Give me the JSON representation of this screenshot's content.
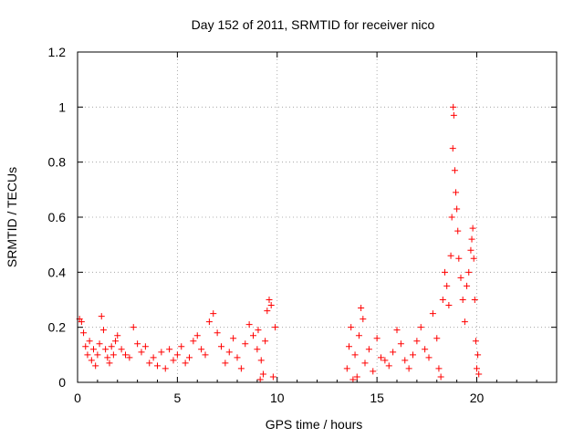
{
  "chart_data": {
    "type": "scatter",
    "title": "Day 152 of 2011, SRMTID for receiver nico",
    "xlabel": "GPS time / hours",
    "ylabel": "SRMTID / TECUs",
    "xlim": [
      0,
      24
    ],
    "ylim": [
      0,
      1.2
    ],
    "xticks": [
      0,
      5,
      10,
      15,
      20
    ],
    "xtick_labels": [
      "0",
      "5",
      "10",
      "15",
      "20"
    ],
    "yticks": [
      0,
      0.2,
      0.4,
      0.6,
      0.8,
      1,
      1.2
    ],
    "ytick_labels": [
      "0",
      "0.2",
      "0.4",
      "0.6",
      "0.8",
      "1",
      "1.2"
    ],
    "grid": true,
    "marker": "+",
    "color": "#ff0000",
    "series": [
      {
        "name": "SRMTID",
        "points": [
          [
            0.1,
            0.23
          ],
          [
            0.2,
            0.22
          ],
          [
            0.3,
            0.18
          ],
          [
            0.4,
            0.13
          ],
          [
            0.5,
            0.1
          ],
          [
            0.6,
            0.15
          ],
          [
            0.7,
            0.08
          ],
          [
            0.8,
            0.12
          ],
          [
            0.9,
            0.06
          ],
          [
            1.0,
            0.1
          ],
          [
            1.1,
            0.14
          ],
          [
            1.2,
            0.24
          ],
          [
            1.3,
            0.19
          ],
          [
            1.4,
            0.12
          ],
          [
            1.5,
            0.09
          ],
          [
            1.6,
            0.07
          ],
          [
            1.7,
            0.13
          ],
          [
            1.8,
            0.1
          ],
          [
            1.9,
            0.15
          ],
          [
            2.0,
            0.17
          ],
          [
            2.2,
            0.12
          ],
          [
            2.4,
            0.1
          ],
          [
            2.6,
            0.09
          ],
          [
            2.8,
            0.2
          ],
          [
            3.0,
            0.14
          ],
          [
            3.2,
            0.11
          ],
          [
            3.4,
            0.13
          ],
          [
            3.6,
            0.07
          ],
          [
            3.8,
            0.09
          ],
          [
            4.0,
            0.06
          ],
          [
            4.2,
            0.11
          ],
          [
            4.4,
            0.05
          ],
          [
            4.6,
            0.12
          ],
          [
            4.8,
            0.08
          ],
          [
            5.0,
            0.1
          ],
          [
            5.2,
            0.13
          ],
          [
            5.4,
            0.07
          ],
          [
            5.6,
            0.09
          ],
          [
            5.8,
            0.15
          ],
          [
            6.0,
            0.17
          ],
          [
            6.2,
            0.12
          ],
          [
            6.4,
            0.1
          ],
          [
            6.6,
            0.22
          ],
          [
            6.8,
            0.25
          ],
          [
            7.0,
            0.18
          ],
          [
            7.2,
            0.13
          ],
          [
            7.4,
            0.07
          ],
          [
            7.6,
            0.11
          ],
          [
            7.8,
            0.16
          ],
          [
            8.0,
            0.09
          ],
          [
            8.2,
            0.05
          ],
          [
            8.4,
            0.14
          ],
          [
            8.6,
            0.21
          ],
          [
            8.8,
            0.17
          ],
          [
            9.0,
            0.12
          ],
          [
            9.2,
            0.08
          ],
          [
            9.3,
            0.03
          ],
          [
            9.4,
            0.15
          ],
          [
            9.5,
            0.26
          ],
          [
            9.6,
            0.3
          ],
          [
            9.7,
            0.28
          ],
          [
            9.8,
            0.02
          ],
          [
            9.9,
            0.2
          ],
          [
            9.05,
            0.19
          ],
          [
            9.15,
            0.01
          ],
          [
            13.5,
            0.05
          ],
          [
            13.6,
            0.13
          ],
          [
            13.7,
            0.2
          ],
          [
            13.8,
            0.01
          ],
          [
            13.9,
            0.1
          ],
          [
            14.0,
            0.02
          ],
          [
            14.1,
            0.17
          ],
          [
            14.2,
            0.27
          ],
          [
            14.3,
            0.23
          ],
          [
            14.4,
            0.07
          ],
          [
            14.6,
            0.12
          ],
          [
            14.8,
            0.04
          ],
          [
            15.0,
            0.16
          ],
          [
            15.2,
            0.09
          ],
          [
            15.4,
            0.08
          ],
          [
            15.6,
            0.06
          ],
          [
            15.8,
            0.11
          ],
          [
            16.0,
            0.19
          ],
          [
            16.2,
            0.14
          ],
          [
            16.4,
            0.08
          ],
          [
            16.6,
            0.05
          ],
          [
            16.8,
            0.1
          ],
          [
            17.0,
            0.15
          ],
          [
            17.2,
            0.2
          ],
          [
            17.4,
            0.12
          ],
          [
            17.6,
            0.09
          ],
          [
            17.8,
            0.25
          ],
          [
            18.0,
            0.16
          ],
          [
            18.1,
            0.05
          ],
          [
            18.2,
            0.02
          ],
          [
            18.3,
            0.3
          ],
          [
            18.4,
            0.4
          ],
          [
            18.5,
            0.35
          ],
          [
            18.6,
            0.28
          ],
          [
            18.7,
            0.46
          ],
          [
            18.75,
            0.6
          ],
          [
            18.8,
            0.85
          ],
          [
            18.82,
            1.0
          ],
          [
            18.85,
            0.97
          ],
          [
            18.9,
            0.77
          ],
          [
            18.95,
            0.69
          ],
          [
            19.0,
            0.63
          ],
          [
            19.05,
            0.55
          ],
          [
            19.1,
            0.45
          ],
          [
            19.2,
            0.38
          ],
          [
            19.3,
            0.3
          ],
          [
            19.4,
            0.22
          ],
          [
            19.5,
            0.35
          ],
          [
            19.6,
            0.4
          ],
          [
            19.7,
            0.48
          ],
          [
            19.75,
            0.52
          ],
          [
            19.8,
            0.56
          ],
          [
            19.85,
            0.45
          ],
          [
            19.9,
            0.3
          ],
          [
            19.95,
            0.15
          ],
          [
            20.0,
            0.05
          ],
          [
            20.05,
            0.1
          ],
          [
            20.1,
            0.03
          ]
        ]
      }
    ]
  }
}
